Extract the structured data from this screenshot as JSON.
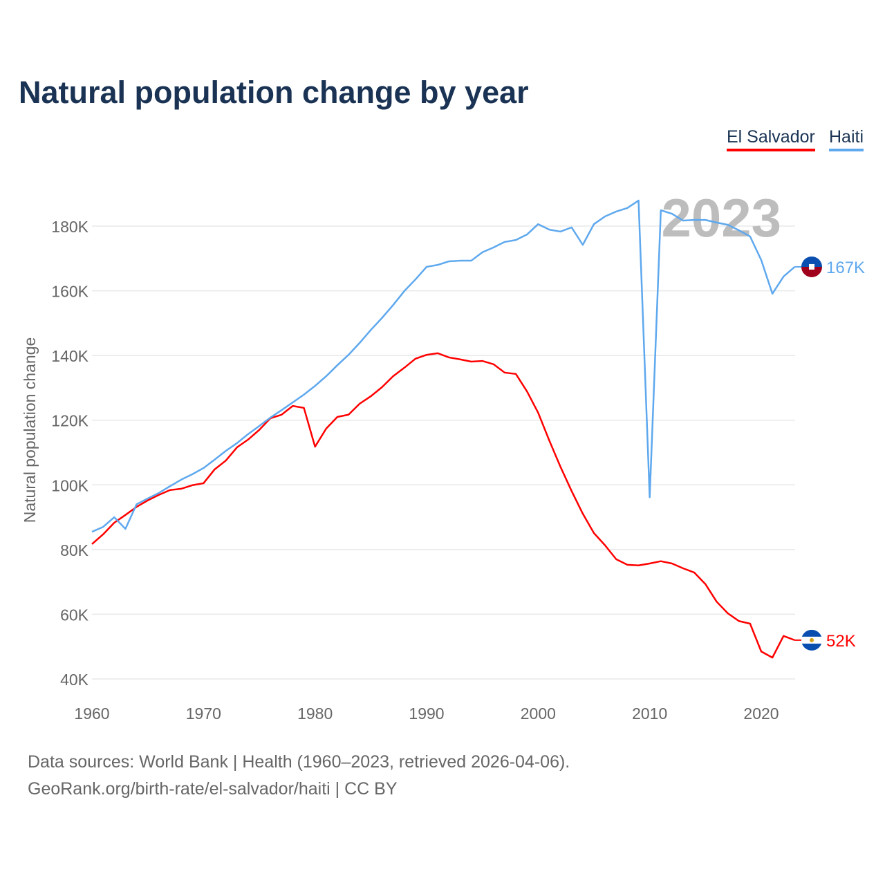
{
  "chart_data": {
    "type": "line",
    "title": "Natural population change by year",
    "xlabel": "",
    "ylabel": "Natural population change",
    "xlim": [
      1960,
      2023
    ],
    "ylim": [
      40000,
      190000
    ],
    "x_ticks": [
      1960,
      1970,
      1980,
      1990,
      2000,
      2010,
      2020
    ],
    "x_tick_labels": [
      "1960",
      "1970",
      "1980",
      "1990",
      "2000",
      "2010",
      "2020"
    ],
    "y_ticks": [
      40000,
      60000,
      80000,
      100000,
      120000,
      140000,
      160000,
      180000
    ],
    "y_tick_labels": [
      "40K",
      "60K",
      "80K",
      "100K",
      "120K",
      "140K",
      "160K",
      "180K"
    ],
    "grid": true,
    "legend_position": "top-right",
    "year_watermark": "2023",
    "x": [
      1960,
      1961,
      1962,
      1963,
      1964,
      1965,
      1966,
      1967,
      1968,
      1969,
      1970,
      1971,
      1972,
      1973,
      1974,
      1975,
      1976,
      1977,
      1978,
      1979,
      1980,
      1981,
      1982,
      1983,
      1984,
      1985,
      1986,
      1987,
      1988,
      1989,
      1990,
      1991,
      1992,
      1993,
      1994,
      1995,
      1996,
      1997,
      1998,
      1999,
      2000,
      2001,
      2002,
      2003,
      2004,
      2005,
      2006,
      2007,
      2008,
      2009,
      2010,
      2011,
      2012,
      2013,
      2014,
      2015,
      2016,
      2017,
      2018,
      2019,
      2020,
      2021,
      2022,
      2023
    ],
    "series": [
      {
        "name": "El Salvador",
        "color": "#ff0000",
        "end_label": "52K",
        "flag": "el-salvador",
        "values": [
          81700,
          84700,
          88300,
          90700,
          93200,
          95200,
          96900,
          98400,
          98800,
          99900,
          100500,
          104800,
          107500,
          111600,
          114000,
          117000,
          120600,
          121700,
          124400,
          123800,
          111800,
          117400,
          121000,
          121700,
          125100,
          127400,
          130200,
          133600,
          136200,
          139000,
          140200,
          140700,
          139400,
          138800,
          138100,
          138300,
          137300,
          134700,
          134300,
          128900,
          122300,
          113700,
          105600,
          98100,
          91100,
          85100,
          81300,
          77000,
          75300,
          75100,
          75700,
          76400,
          75700,
          74200,
          72900,
          69300,
          63900,
          60300,
          57900,
          57100,
          48500,
          46600,
          53300,
          52000
        ]
      },
      {
        "name": "Haiti",
        "color": "#5ea8ee",
        "end_label": "167K",
        "flag": "haiti",
        "values": [
          85500,
          87000,
          90000,
          86400,
          94000,
          95800,
          97500,
          99600,
          101600,
          103300,
          105200,
          107800,
          110500,
          112900,
          115700,
          118200,
          120800,
          123100,
          125500,
          127900,
          130600,
          133600,
          137000,
          140200,
          143900,
          147900,
          151600,
          155600,
          159900,
          163500,
          167400,
          168000,
          169100,
          169300,
          169300,
          171900,
          173400,
          175100,
          175700,
          177400,
          180600,
          178900,
          178300,
          179600,
          174200,
          180600,
          183000,
          184500,
          185600,
          187900,
          96200,
          184900,
          183800,
          181700,
          181900,
          181900,
          181100,
          180400,
          178700,
          176800,
          169500,
          159100,
          164400,
          167400
        ]
      }
    ]
  },
  "footer": {
    "line1": "Data sources: World Bank | Health (1960–2023, retrieved 2026-04-06).",
    "line2": "GeoRank.org/birth-rate/el-salvador/haiti | CC BY"
  }
}
